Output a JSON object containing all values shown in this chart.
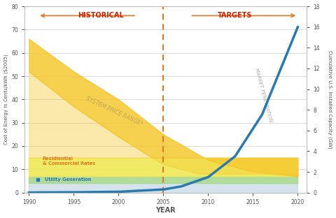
{
  "years": [
    1990,
    1995,
    2000,
    2005,
    2010,
    2015,
    2020
  ],
  "xlim": [
    1989.5,
    2021
  ],
  "ylim_left": [
    0,
    80
  ],
  "ylim_right": [
    0,
    18
  ],
  "left_yticks": [
    0,
    10,
    20,
    30,
    40,
    50,
    60,
    70,
    80
  ],
  "right_yticks": [
    0,
    2,
    4,
    6,
    8,
    10,
    12,
    14,
    16,
    18
  ],
  "xticks": [
    1990,
    1995,
    2000,
    2005,
    2010,
    2015,
    2020
  ],
  "xlabel": "YEAR",
  "ylabel_left": "Cost of Energy in Cents/kWh ($2005)",
  "ylabel_right": "Cumulative U.S. Installed Capacity (GW)",
  "title_historical": "HISTORICAL",
  "title_targets": "TARGETS",
  "vline_x": 2005,
  "bg_color": "#ffffff",
  "grid_color": "#cccccc",
  "system_price_upper": [
    66,
    52,
    40,
    25,
    14,
    9,
    7
  ],
  "system_price_lower": [
    52,
    37,
    24,
    12,
    7,
    5,
    5
  ],
  "residential_upper": 15,
  "residential_lower": 8,
  "utility_upper": 7,
  "utility_lower": 4,
  "market_penetration_years": [
    1990,
    1995,
    2000,
    2005,
    2007,
    2010,
    2013,
    2016,
    2020
  ],
  "market_penetration_vals": [
    0.01,
    0.03,
    0.08,
    0.3,
    0.6,
    1.5,
    3.5,
    7.5,
    16.0
  ],
  "market_color": "#2a7aad",
  "system_fill_color": "#f5c830",
  "residential_color": "#f0e855",
  "utility_color": "#a8d890",
  "blue_fill_color": "#b5ccdd",
  "label_system": "SYSTEM PRICE RANGE*",
  "label_market": "MARKET PENETRATION",
  "label_residential": "Residiential\n& Commercial Rates",
  "label_utility": "Utility Generation",
  "residential_text_color": "#e07820",
  "utility_text_color": "#2a7aad",
  "historical_color": "#cc2200",
  "targets_color": "#cc2200",
  "arrow_color": "#e08030",
  "vline_color": "#e07820",
  "system_label_color": "#c0a855",
  "market_label_color": "#aaaaaa",
  "figsize": [
    4.8,
    3.12
  ],
  "dpi": 100
}
